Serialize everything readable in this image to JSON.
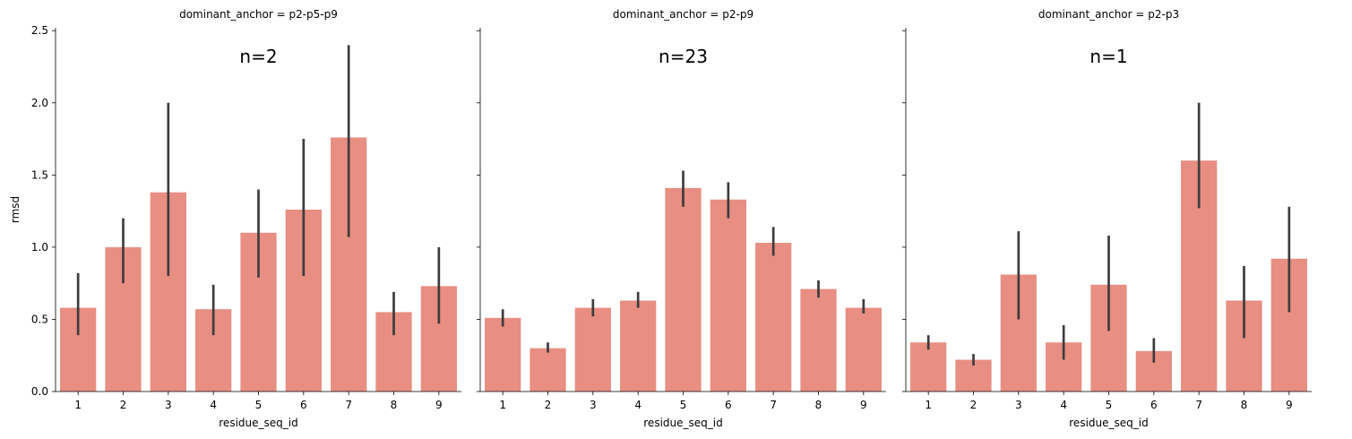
{
  "figure": {
    "ylabel": "rmsd",
    "xlabel": "residue_seq_id",
    "y_ticks": [
      "0.0",
      "0.5",
      "1.0",
      "1.5",
      "2.0",
      "2.5"
    ]
  },
  "chart_data": [
    {
      "type": "bar",
      "title": "dominant_anchor = p2-p5-p9",
      "annotation": "n=2",
      "xlabel": "residue_seq_id",
      "ylabel": "rmsd",
      "ylim": [
        0,
        2.52
      ],
      "categories": [
        "1",
        "2",
        "3",
        "4",
        "5",
        "6",
        "7",
        "8",
        "9"
      ],
      "values": [
        0.58,
        1.0,
        1.38,
        0.57,
        1.1,
        1.26,
        1.76,
        0.55,
        0.73
      ],
      "error_low": [
        0.39,
        0.75,
        0.8,
        0.39,
        0.79,
        0.8,
        1.07,
        0.39,
        0.47
      ],
      "error_high": [
        0.82,
        1.2,
        2.0,
        0.74,
        1.4,
        1.75,
        2.4,
        0.69,
        1.0
      ],
      "color": "#e88e82"
    },
    {
      "type": "bar",
      "title": "dominant_anchor = p2-p9",
      "annotation": "n=23",
      "xlabel": "residue_seq_id",
      "ylabel": "rmsd",
      "ylim": [
        0,
        2.52
      ],
      "categories": [
        "1",
        "2",
        "3",
        "4",
        "5",
        "6",
        "7",
        "8",
        "9"
      ],
      "values": [
        0.51,
        0.3,
        0.58,
        0.63,
        1.41,
        1.33,
        1.03,
        0.71,
        0.58
      ],
      "error_low": [
        0.45,
        0.27,
        0.52,
        0.58,
        1.28,
        1.2,
        0.94,
        0.65,
        0.54
      ],
      "error_high": [
        0.57,
        0.34,
        0.64,
        0.69,
        1.53,
        1.45,
        1.14,
        0.77,
        0.64
      ],
      "color": "#e88e82"
    },
    {
      "type": "bar",
      "title": "dominant_anchor = p2-p3",
      "annotation": "n=1",
      "xlabel": "residue_seq_id",
      "ylabel": "rmsd",
      "ylim": [
        0,
        2.52
      ],
      "categories": [
        "1",
        "2",
        "3",
        "4",
        "5",
        "6",
        "7",
        "8",
        "9"
      ],
      "values": [
        0.34,
        0.22,
        0.81,
        0.34,
        0.74,
        0.28,
        1.6,
        0.63,
        0.92
      ],
      "error_low": [
        0.29,
        0.18,
        0.5,
        0.22,
        0.42,
        0.2,
        1.27,
        0.37,
        0.55
      ],
      "error_high": [
        0.39,
        0.26,
        1.11,
        0.46,
        1.08,
        0.37,
        2.0,
        0.87,
        1.28
      ],
      "color": "#e88e82"
    }
  ]
}
